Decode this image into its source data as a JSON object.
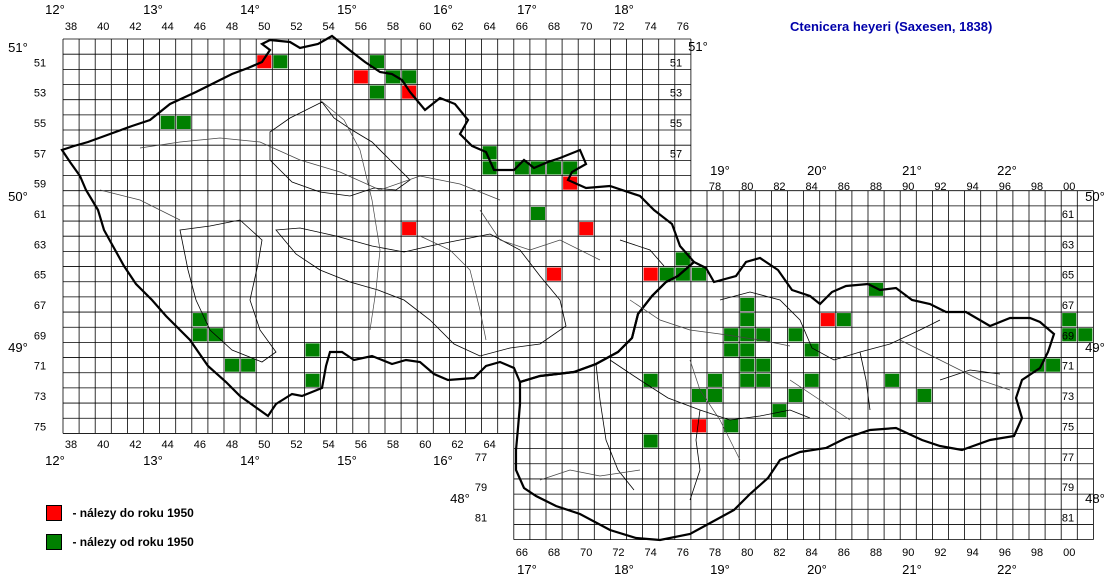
{
  "title": "Ctenicera heyeri (Saxesen, 1838)",
  "legend": [
    {
      "color": "#ff0000",
      "label": "- nálezy do roku 1950"
    },
    {
      "color": "#008000",
      "label": "- nálezy od roku 1950"
    }
  ],
  "colors": {
    "old": "#ff0000",
    "new": "#008000",
    "grid": "#000000",
    "title": "#0000aa"
  },
  "cz_top_cols": [
    "38",
    "40",
    "42",
    "44",
    "46",
    "48",
    "50",
    "52",
    "54",
    "56",
    "58",
    "60",
    "62",
    "64",
    "66",
    "68",
    "70",
    "72",
    "74",
    "76"
  ],
  "cz_bottom_cols": [
    "38",
    "40",
    "42",
    "44",
    "46",
    "48",
    "50",
    "52",
    "54",
    "56",
    "58",
    "60",
    "62",
    "64"
  ],
  "sk_top_cols": [
    "78",
    "80",
    "82",
    "84",
    "86",
    "88",
    "90",
    "92",
    "94",
    "96",
    "98",
    "00"
  ],
  "sk_bottom_cols": [
    "66",
    "68",
    "70",
    "72",
    "74",
    "76",
    "78",
    "80",
    "82",
    "84",
    "86",
    "88",
    "90",
    "92",
    "94",
    "96",
    "98",
    "00"
  ],
  "cz_rows": [
    "51",
    "53",
    "55",
    "57",
    "59",
    "61",
    "63",
    "65",
    "67",
    "69",
    "71",
    "73",
    "75"
  ],
  "right_rows_top": [
    "51",
    "53",
    "55",
    "57"
  ],
  "right_rows_sk": [
    "61",
    "63",
    "65",
    "67",
    "69",
    "71",
    "73",
    "75",
    "77",
    "79",
    "81"
  ],
  "left_rows_sk": [
    "77",
    "79",
    "81"
  ],
  "deg_top_cz": [
    "12°",
    "13°",
    "14°",
    "15°",
    "16°",
    "17°",
    "18°"
  ],
  "deg_bottom_cz": [
    "12°",
    "13°",
    "14°",
    "15°",
    "16°"
  ],
  "deg_top_sk": [
    "19°",
    "20°",
    "21°",
    "22°"
  ],
  "deg_bottom_sk": [
    "17°",
    "18°",
    "19°",
    "20°",
    "21°",
    "22°"
  ],
  "lat_left": [
    "51°",
    "50°",
    "49°",
    "48°"
  ],
  "lat_right": [
    "51°",
    "50°",
    "49°",
    "48°"
  ],
  "records": {
    "old": [
      [
        50,
        51
      ],
      [
        56,
        52
      ],
      [
        59,
        53
      ],
      [
        69,
        59
      ],
      [
        59,
        62
      ],
      [
        70,
        62
      ],
      [
        68,
        65
      ],
      [
        74,
        65
      ],
      [
        85,
        68
      ],
      [
        77,
        75
      ]
    ],
    "new": [
      [
        51,
        51
      ],
      [
        57,
        51
      ],
      [
        58,
        52
      ],
      [
        59,
        52
      ],
      [
        57,
        53
      ],
      [
        44,
        55
      ],
      [
        45,
        55
      ],
      [
        64,
        57
      ],
      [
        64,
        58
      ],
      [
        66,
        58
      ],
      [
        67,
        58
      ],
      [
        68,
        58
      ],
      [
        69,
        58
      ],
      [
        67,
        61
      ],
      [
        76,
        64
      ],
      [
        75,
        65
      ],
      [
        76,
        65
      ],
      [
        77,
        65
      ],
      [
        80,
        67
      ],
      [
        88,
        66
      ],
      [
        86,
        68
      ],
      [
        46,
        68
      ],
      [
        46,
        69
      ],
      [
        47,
        69
      ],
      [
        49,
        71
      ],
      [
        48,
        71
      ],
      [
        53,
        70
      ],
      [
        53,
        72
      ],
      [
        79,
        69
      ],
      [
        80,
        68
      ],
      [
        80,
        69
      ],
      [
        81,
        69
      ],
      [
        83,
        69
      ],
      [
        79,
        70
      ],
      [
        80,
        70
      ],
      [
        84,
        70
      ],
      [
        80,
        71
      ],
      [
        81,
        71
      ],
      [
        80,
        72
      ],
      [
        81,
        72
      ],
      [
        78,
        72
      ],
      [
        74,
        72
      ],
      [
        84,
        72
      ],
      [
        89,
        72
      ],
      [
        77,
        73
      ],
      [
        78,
        73
      ],
      [
        83,
        73
      ],
      [
        91,
        73
      ],
      [
        82,
        74
      ],
      [
        79,
        75
      ],
      [
        74,
        76
      ],
      [
        100,
        68
      ],
      [
        100,
        69
      ],
      [
        101,
        69
      ],
      [
        98,
        71
      ],
      [
        99,
        71
      ]
    ]
  }
}
